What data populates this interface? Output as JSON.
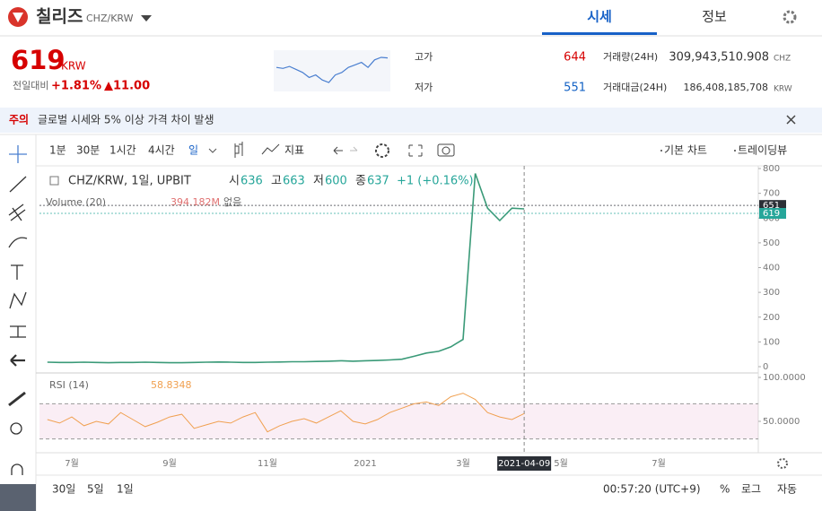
{
  "header": {
    "name": "칠리즈",
    "pair": "CHZ/KRW",
    "tabs": [
      "시세",
      "정보"
    ]
  },
  "price": {
    "value": 619,
    "unit": "KRW",
    "change_label": "전일대비",
    "change_pct": "+1.81%",
    "change_abs": "▲11.00",
    "high_label": "고가",
    "high": 644,
    "low_label": "저가",
    "low": 551,
    "volume_label": "거래량(24H)",
    "volume": "309,943,510.908",
    "volume_unit": "CHZ",
    "turnover_label": "거래대금(24H)",
    "turnover": "186,408,185,708",
    "turnover_unit": "KRW",
    "sparkline": [
      600,
      598,
      602,
      596,
      590,
      580,
      585,
      575,
      570,
      585,
      590,
      600,
      605,
      610,
      600,
      615,
      620,
      619
    ]
  },
  "notice": {
    "tag": "주의",
    "text": "글로벌 시세와 5% 이상 가격 차이 발생"
  },
  "toolbar": {
    "intervals": [
      "1분",
      "30분",
      "1시간",
      "4시간",
      "일"
    ],
    "indicator": "지표",
    "views": [
      "기본 차트",
      "트레이딩뷰"
    ]
  },
  "footer": {
    "ranges": [
      "30일",
      "5일",
      "1일"
    ],
    "time": "00:57:20 (UTC+9)",
    "options": [
      "%",
      "로그",
      "자동"
    ]
  },
  "chart_data": {
    "type": "line",
    "title": "CHZ/KRW, 1일, UPBIT",
    "ohlc": [
      {
        "label": "시",
        "value": 636
      },
      {
        "label": "고",
        "value": 663
      },
      {
        "label": "저",
        "value": 600
      },
      {
        "label": "종",
        "value": 637
      }
    ],
    "change": "+1 (+0.16%)",
    "indicators": [
      {
        "name": "Volume (20)",
        "value": "394.182M",
        "extra": "없음"
      }
    ],
    "categories": [
      null,
      null,
      "7월",
      null,
      null,
      null,
      null,
      null,
      null,
      null,
      "9월",
      null,
      null,
      null,
      null,
      null,
      null,
      null,
      "11월",
      null,
      null,
      null,
      null,
      null,
      null,
      null,
      "2021",
      null,
      null,
      null,
      null,
      null,
      null,
      null,
      "3월",
      null,
      null,
      null,
      null,
      "2021-04-09",
      null,
      null,
      "5월",
      null,
      null,
      null,
      null,
      null,
      null,
      null,
      "7월",
      null,
      null,
      null,
      null,
      null,
      null,
      null
    ],
    "series": [
      {
        "color": "#3a9a78",
        "values": [
          18,
          17,
          17,
          18,
          17,
          16,
          17,
          17,
          18,
          17,
          16,
          16,
          17,
          18,
          19,
          18,
          17,
          17,
          18,
          19,
          20,
          20,
          21,
          22,
          24,
          22,
          24,
          25,
          27,
          30,
          42,
          55,
          62,
          80,
          110,
          780,
          640,
          590,
          640,
          637,
          null,
          null,
          null,
          null,
          null,
          null,
          null,
          null,
          null,
          null,
          null,
          null,
          null,
          null,
          null,
          null,
          null,
          null
        ]
      },
      {
        "name": "RSI (14)",
        "color": "#f0a050",
        "axis": "y2",
        "values": [
          52,
          48,
          55,
          45,
          50,
          47,
          60,
          52,
          44,
          49,
          55,
          58,
          42,
          46,
          50,
          48,
          55,
          60,
          38,
          45,
          50,
          53,
          48,
          55,
          62,
          50,
          47,
          52,
          60,
          65,
          70,
          72,
          68,
          78,
          82,
          75,
          60,
          55,
          52,
          58.8348,
          null,
          null,
          null,
          null,
          null,
          null,
          null,
          null,
          null,
          null,
          null,
          null,
          null,
          null,
          null,
          null,
          null,
          null
        ]
      }
    ],
    "ylim": [
      0,
      800
    ],
    "yticks": [
      0,
      100,
      200,
      300,
      400,
      500,
      600,
      700,
      800
    ],
    "y2lim": [
      22,
      100
    ],
    "y2ticks": [
      {
        "value": 100,
        "label": "100.0000"
      },
      {
        "value": 50,
        "label": "50.0000"
      }
    ],
    "y2bands": [
      30,
      70
    ],
    "y_markers": [
      {
        "value": 651,
        "color": "#2b2f36"
      },
      {
        "value": 619,
        "color": "#26a69a"
      }
    ],
    "grid": false
  }
}
